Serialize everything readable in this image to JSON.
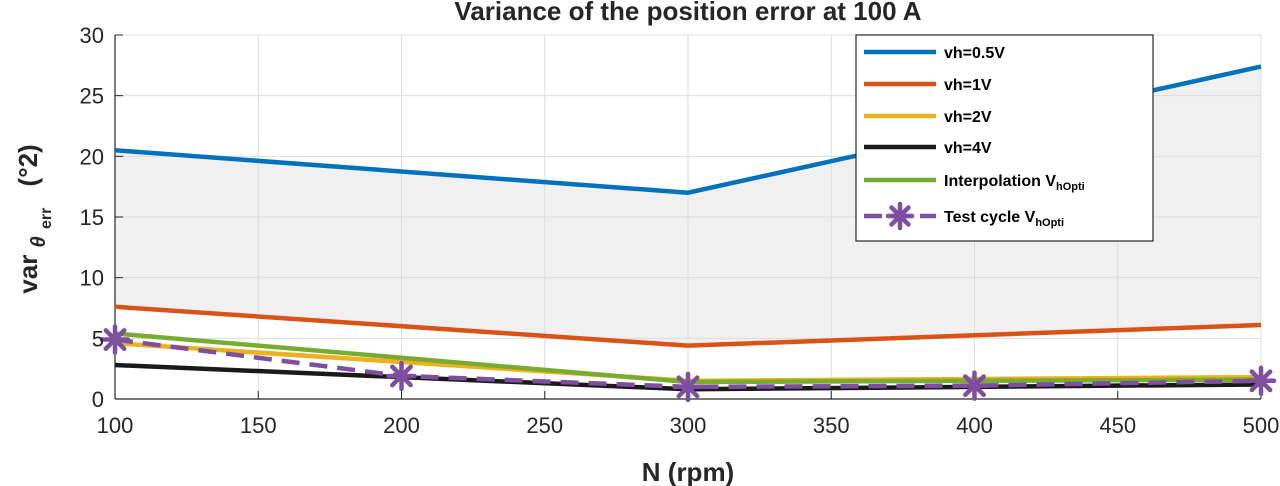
{
  "chart_data": {
    "type": "line",
    "title": "Variance of the position error at 100 A",
    "xlabel": "N (rpm)",
    "ylabel": {
      "main": "var",
      "sub_symbol": "θ",
      "sub_sub": "err",
      "unit": "(°2)"
    },
    "xlim": [
      100,
      500
    ],
    "ylim": [
      0,
      30
    ],
    "xticks": [
      100,
      150,
      200,
      250,
      300,
      350,
      400,
      450,
      500
    ],
    "yticks": [
      0,
      5,
      10,
      15,
      20,
      25,
      30
    ],
    "grid": true,
    "legend_position": "top-right",
    "shaded_band": {
      "upper_series": "vh=0.5V",
      "lower_series": "vh=1V",
      "color": "#f0f0f0"
    },
    "series": [
      {
        "name": "vh=0.5V",
        "x": [
          100,
          300,
          500
        ],
        "values": [
          20.5,
          17.0,
          27.4
        ],
        "color": "#0072bd",
        "style": "solid"
      },
      {
        "name": "vh=1V",
        "x": [
          100,
          300,
          500
        ],
        "values": [
          7.6,
          4.4,
          6.1
        ],
        "color": "#d95319",
        "style": "solid"
      },
      {
        "name": "vh=2V",
        "x": [
          100,
          300,
          500
        ],
        "values": [
          4.6,
          1.5,
          1.8
        ],
        "color": "#edb120",
        "style": "solid"
      },
      {
        "name": "vh=4V",
        "x": [
          100,
          300,
          500
        ],
        "values": [
          2.8,
          0.8,
          1.2
        ],
        "color": "#1a1a1a",
        "style": "solid"
      },
      {
        "name": "Interpolation V",
        "name_sub": "hOpti",
        "x": [
          100,
          300,
          500
        ],
        "values": [
          5.4,
          1.4,
          1.6
        ],
        "color": "#77ac30",
        "style": "solid"
      },
      {
        "name": "Test cycle V",
        "name_sub": "hOpti",
        "x": [
          100,
          200,
          300,
          400,
          500
        ],
        "values": [
          4.9,
          1.9,
          1.0,
          1.1,
          1.5
        ],
        "color": "#7e4f9e",
        "style": "dashed",
        "marker": "asterisk"
      }
    ]
  }
}
